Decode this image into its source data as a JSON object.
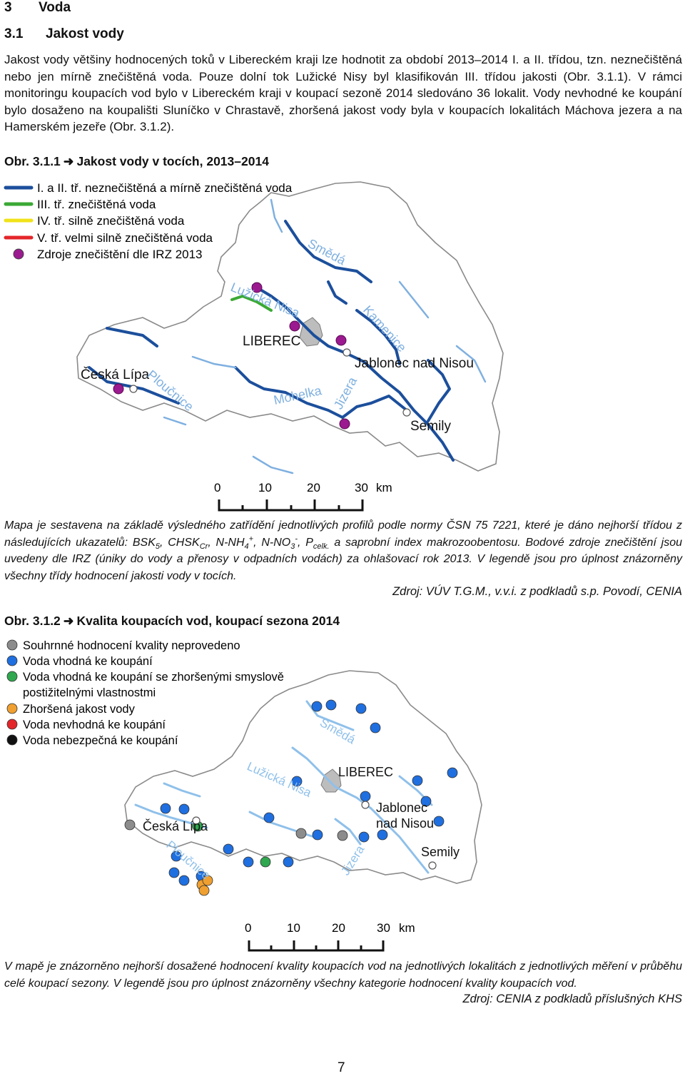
{
  "chapter": {
    "number": "3",
    "title": "Voda"
  },
  "section": {
    "number": "3.1",
    "title": "Jakost vody"
  },
  "intro_text": "Jakost vody většiny hodnocených toků v Libereckém kraji lze hodnotit za období 2013–2014 I. a II. třídou, tzn. neznečištěná nebo jen mírně znečištěná voda. Pouze dolní tok Lužické Nisy byl klasifikován III. třídou jakosti (Obr. 3.1.1). V rámci monitoringu koupacích vod bylo v Libereckém kraji v koupací sezoně 2014 sledováno 36 lokalit. Vody nevhodné ke koupání bylo dosaženo na koupališti Sluníčko v Chrastavě, zhoršená jakost vody byla v koupacích lokalitách Máchova jezera a na Hamerském jezeře (Obr. 3.1.2).",
  "fig1": {
    "label": "Obr. 3.1.1",
    "arrow": "➜",
    "title": "Jakost vody v tocích, 2013–2014",
    "legend": [
      {
        "label": "I. a II. tř. neznečištěná a mírně znečištěná voda",
        "color": "#1c4f9c"
      },
      {
        "label": "III. tř. znečištěná voda",
        "color": "#3aa935"
      },
      {
        "label": "IV. tř. silně znečištěná voda",
        "color": "#f0e21a"
      },
      {
        "label": "V. tř. velmi silně znečištěná voda",
        "color": "#e3262a"
      },
      {
        "label": "Zdroje znečištění dle IRZ 2013",
        "color": "#9b1a8f"
      }
    ],
    "map_labels": {
      "river_smeda": "Smědá",
      "river_luzicka": "Lužická Nisa",
      "river_kamenice": "Kamenice",
      "river_ploucnice": "Ploučnice",
      "river_mohelka": "Mohelka",
      "river_jizera": "Jizera",
      "city_liberec": "LIBEREC",
      "city_jablonec": "Jablonec nad Nisou",
      "city_ceska_lipa": "Česká Lípa",
      "city_semily": "Semily"
    },
    "scale": {
      "ticks": [
        "0",
        "10",
        "20",
        "30"
      ],
      "unit": "km"
    },
    "caption_a": "Mapa je sestavena na základě výsledného zatřídění jednotlivých profilů podle normy ČSN 75 7221, které je dáno nejhorší třídou z následujících ukazatelů: BSK",
    "caption_sub5": "5",
    "caption_b": ", CHSK",
    "caption_subcr": "Cr",
    "caption_c": ", N-NH",
    "caption_sub4": "4",
    "caption_sup_plus": "+",
    "caption_d": ", N-NO",
    "caption_sub3": "3",
    "caption_sup_minus": "-",
    "caption_e": ", P",
    "caption_subcelk": "celk.",
    "caption_f": " a saprobní index makrozoobentosu. Bodové zdroje znečištění jsou uvedeny dle IRZ (úniky do vody a přenosy v odpadních vodách) za ohlašovací rok 2013. V legendě jsou pro úplnost znázorněny všechny třídy hodnocení jakosti vody v tocích.",
    "source": "Zdroj: VÚV T.G.M., v.v.i. z podkladů s.p. Povodí, CENIA"
  },
  "fig2": {
    "label": "Obr. 3.1.2",
    "arrow": "➜",
    "title": "Kvalita koupacích vod, koupací sezona 2014",
    "legend": [
      {
        "label": "Souhrnné hodnocení kvality neprovedeno",
        "color": "#8c8c8c"
      },
      {
        "label": "Voda vhodná ke koupání",
        "color": "#1f6fe0"
      },
      {
        "label": "Voda vhodná ke koupání se zhoršenými smyslově",
        "color": "#2fa84f"
      },
      {
        "label": "postižitelnými vlastnostmi",
        "color": ""
      },
      {
        "label": "Zhoršená jakost vody",
        "color": "#f0a030"
      },
      {
        "label": "Voda nevhodná ke koupání",
        "color": "#e3262a"
      },
      {
        "label": "Voda nebezpečná ke koupání",
        "color": "#111111"
      }
    ],
    "map_labels": {
      "river_smeda": "Smědá",
      "river_luzicka": "Lužická Nisa",
      "river_ploucnice": "Ploučnice",
      "river_jizera": "Jizera",
      "city_liberec": "LIBEREC",
      "city_jablonec_1": "Jablonec",
      "city_jablonec_2": "nad Nisou",
      "city_ceska_lipa": "Česká Lípa",
      "city_semily": "Semily"
    },
    "scale": {
      "ticks": [
        "0",
        "10",
        "20",
        "30"
      ],
      "unit": "km"
    },
    "caption": "V mapě je znázorněno nejhorší dosažené hodnocení kvality koupacích vod na jednotlivých lokalitách z jednotlivých měření v průběhu celé koupací sezony. V legendě jsou pro úplnost znázorněny všechny kategorie hodnocení kvality koupacích vod.",
    "source": "Zdroj: CENIA z podkladů příslušných KHS"
  },
  "page_number": "7"
}
